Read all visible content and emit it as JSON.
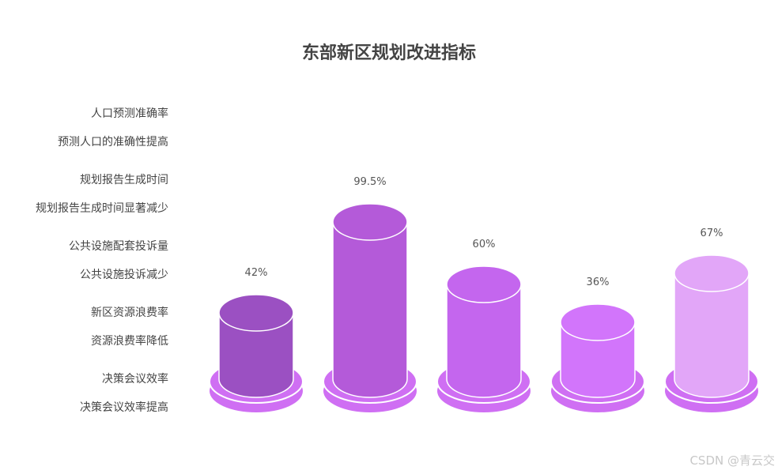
{
  "chart_data": {
    "type": "bar",
    "title": "东部新区规划改进指标",
    "label_pairs": [
      [
        "人口预测准确率",
        "预测人口的准确性提高"
      ],
      [
        "规划报告生成时间",
        "规划报告生成时间显著减少"
      ],
      [
        "公共设施配套投诉量",
        "公共设施投诉减少"
      ],
      [
        "新区资源浪费率",
        "资源浪费率降低"
      ],
      [
        "决策会议效率",
        "决策会议效率提高"
      ]
    ],
    "values": [
      42,
      99.5,
      60,
      36,
      67
    ],
    "value_labels": [
      "42%",
      "99.5%",
      "60%",
      "36%",
      "67%"
    ],
    "ylim": [
      0,
      100
    ],
    "colors": [
      "#9b50c2",
      "#b45ad9",
      "#c466ee",
      "#d275fb",
      "#e2a6f8"
    ],
    "base_color": "#cf6ff3"
  },
  "watermark": "CSDN @青云交"
}
